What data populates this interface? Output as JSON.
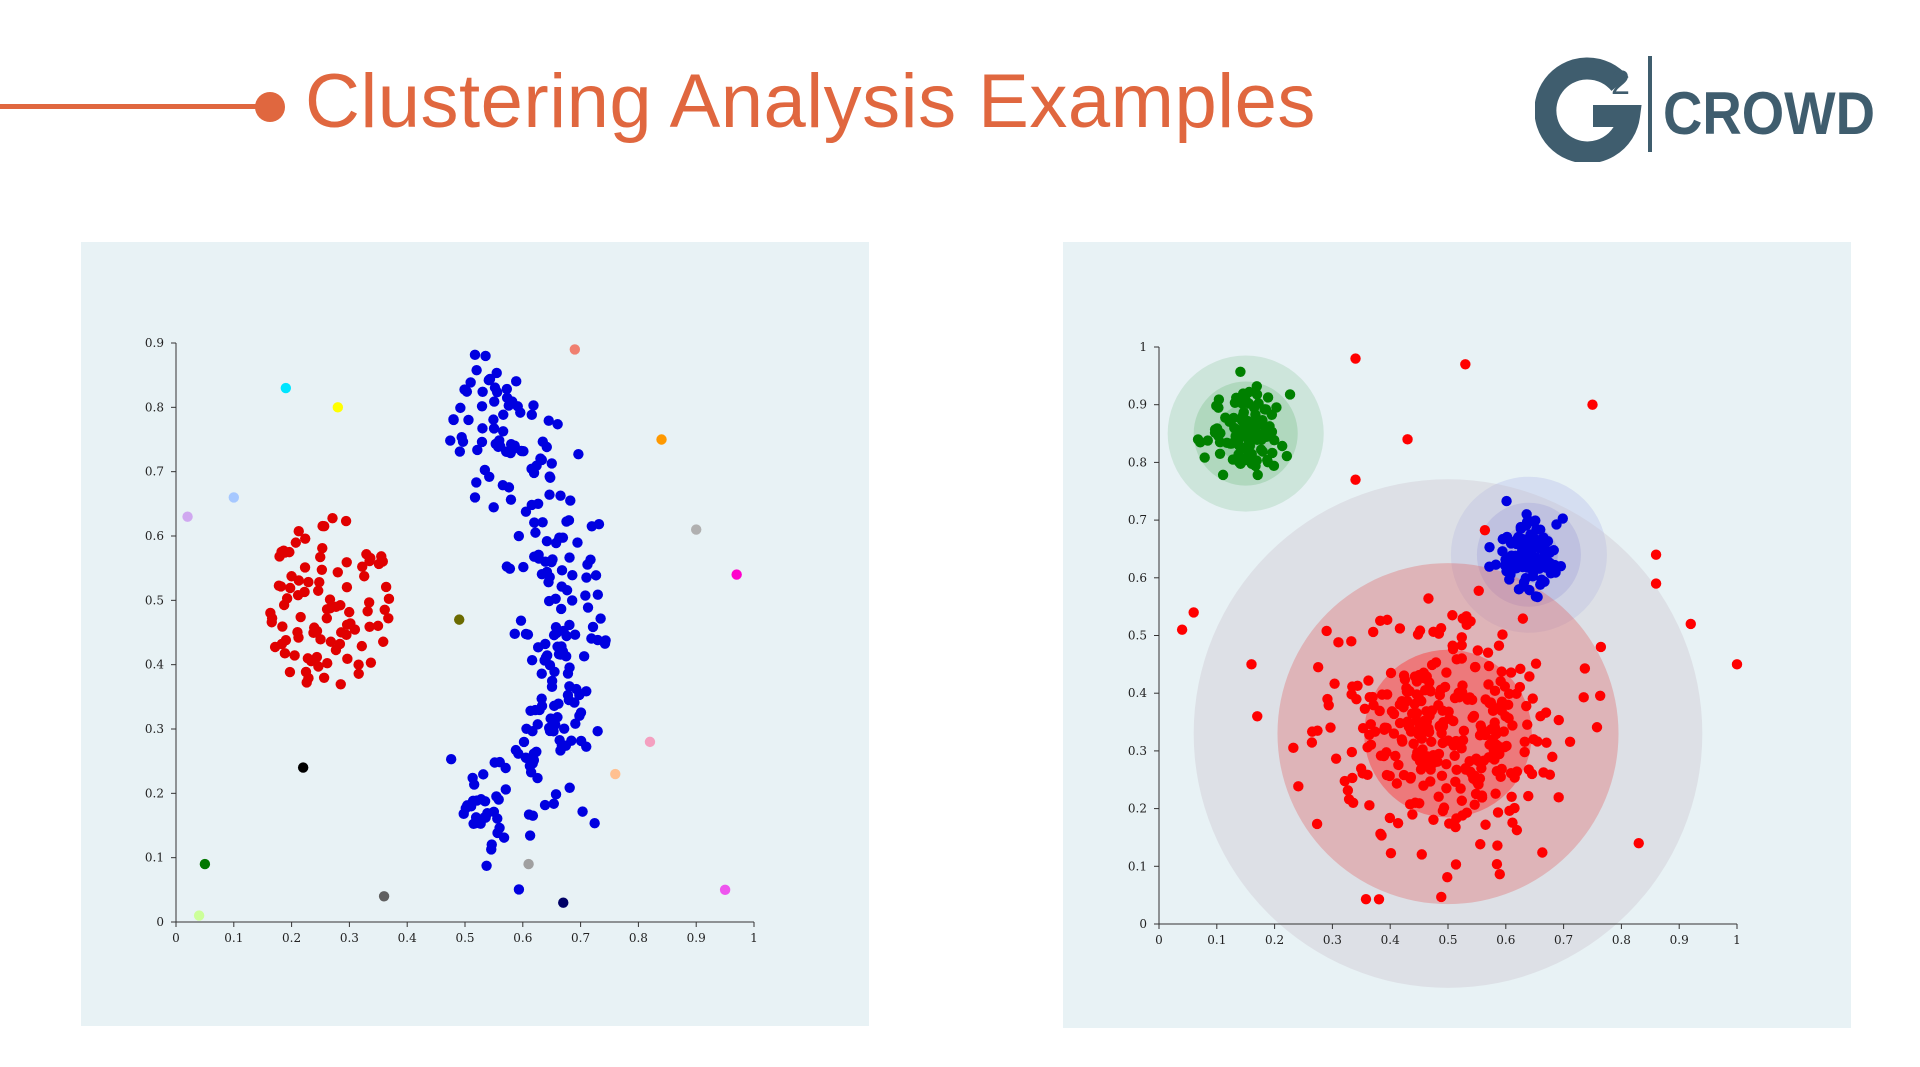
{
  "header": {
    "title": "Clustering Analysis Examples",
    "accent_color": "#e0673f",
    "logo": {
      "text": "CROWD",
      "mark": "G²",
      "color": "#3f5d6e"
    }
  },
  "chart_data": [
    {
      "type": "scatter",
      "title": "",
      "xlabel": "",
      "ylabel": "",
      "xlim": [
        0,
        1
      ],
      "ylim": [
        0,
        0.9
      ],
      "x_ticks": [
        "0",
        "0.1",
        "0.2",
        "0.3",
        "0.4",
        "0.5",
        "0.6",
        "0.7",
        "0.8",
        "0.9",
        "1"
      ],
      "y_ticks": [
        "0",
        "0.1",
        "0.2",
        "0.3",
        "0.4",
        "0.5",
        "0.6",
        "0.7",
        "0.8",
        "0.9"
      ],
      "grid": false,
      "clusters": [
        {
          "color": "#e00000",
          "shape": "disc",
          "center": [
            0.27,
            0.49
          ],
          "spread": [
            0.07,
            0.09
          ],
          "count": 95
        },
        {
          "color": "#0000e0",
          "shape": "arc",
          "center": [
            0.35,
            0.47
          ],
          "radius": 0.33,
          "angle_range": [
            -60,
            65
          ],
          "width": 0.045,
          "count": 250
        }
      ],
      "outliers": [
        {
          "x": 0.69,
          "y": 0.89,
          "color": "#f08070"
        },
        {
          "x": 0.19,
          "y": 0.83,
          "color": "#00e5ff"
        },
        {
          "x": 0.28,
          "y": 0.8,
          "color": "#ffff00"
        },
        {
          "x": 0.84,
          "y": 0.75,
          "color": "#ff9900"
        },
        {
          "x": 0.1,
          "y": 0.66,
          "color": "#a6c8ff"
        },
        {
          "x": 0.02,
          "y": 0.63,
          "color": "#d0a8f0"
        },
        {
          "x": 0.9,
          "y": 0.61,
          "color": "#b0b0b0"
        },
        {
          "x": 0.97,
          "y": 0.54,
          "color": "#ff00cc"
        },
        {
          "x": 0.49,
          "y": 0.47,
          "color": "#6b6b00"
        },
        {
          "x": 0.82,
          "y": 0.28,
          "color": "#f4a0c0"
        },
        {
          "x": 0.22,
          "y": 0.24,
          "color": "#000000"
        },
        {
          "x": 0.76,
          "y": 0.23,
          "color": "#ffc090"
        },
        {
          "x": 0.05,
          "y": 0.09,
          "color": "#007700"
        },
        {
          "x": 0.61,
          "y": 0.09,
          "color": "#a0a0a0"
        },
        {
          "x": 0.36,
          "y": 0.04,
          "color": "#606060"
        },
        {
          "x": 0.67,
          "y": 0.03,
          "color": "#000066"
        },
        {
          "x": 0.95,
          "y": 0.05,
          "color": "#ee55ee"
        },
        {
          "x": 0.04,
          "y": 0.01,
          "color": "#ccff99"
        }
      ]
    },
    {
      "type": "scatter",
      "title": "",
      "xlabel": "",
      "ylabel": "",
      "xlim": [
        0,
        1
      ],
      "ylim": [
        0,
        1
      ],
      "x_ticks": [
        "0",
        "0.1",
        "0.2",
        "0.3",
        "0.4",
        "0.5",
        "0.6",
        "0.7",
        "0.8",
        "0.9",
        "1"
      ],
      "y_ticks": [
        "0",
        "0.1",
        "0.2",
        "0.3",
        "0.4",
        "0.5",
        "0.6",
        "0.7",
        "0.8",
        "0.9",
        "1"
      ],
      "grid": false,
      "clusters": [
        {
          "color": "#008000",
          "center": [
            0.15,
            0.85
          ],
          "spread": 0.035,
          "count": 110,
          "halos": [
            {
              "r": 0.135,
              "color": "#2e9e3e",
              "opacity": 0.14
            },
            {
              "r": 0.09,
              "color": "#2e9e3e",
              "opacity": 0.18
            },
            {
              "r": 0.05,
              "color": "#2e9e3e",
              "opacity": 0.22
            }
          ]
        },
        {
          "color": "#0000e0",
          "center": [
            0.64,
            0.64
          ],
          "spread": 0.03,
          "count": 110,
          "halos": [
            {
              "r": 0.135,
              "color": "#3030d0",
              "opacity": 0.1
            },
            {
              "r": 0.09,
              "color": "#3030d0",
              "opacity": 0.16
            },
            {
              "r": 0.05,
              "color": "#3030d0",
              "opacity": 0.22
            }
          ]
        },
        {
          "color": "#ff0000",
          "center": [
            0.5,
            0.33
          ],
          "spread": 0.1,
          "count": 330,
          "halos": [
            {
              "r": 0.44,
              "color": "#c8c0cc",
              "opacity": 0.35
            },
            {
              "r": 0.295,
              "color": "#e06060",
              "opacity": 0.35
            },
            {
              "r": 0.145,
              "color": "#ff3030",
              "opacity": 0.45
            }
          ]
        }
      ],
      "outliers": [
        {
          "x": 0.34,
          "y": 0.98,
          "color": "#ff0000"
        },
        {
          "x": 0.53,
          "y": 0.97,
          "color": "#ff0000"
        },
        {
          "x": 0.75,
          "y": 0.9,
          "color": "#ff0000"
        },
        {
          "x": 0.43,
          "y": 0.84,
          "color": "#ff0000"
        },
        {
          "x": 0.34,
          "y": 0.77,
          "color": "#ff0000"
        },
        {
          "x": 0.86,
          "y": 0.64,
          "color": "#ff0000"
        },
        {
          "x": 0.86,
          "y": 0.59,
          "color": "#ff0000"
        },
        {
          "x": 0.06,
          "y": 0.54,
          "color": "#ff0000"
        },
        {
          "x": 0.04,
          "y": 0.51,
          "color": "#ff0000"
        },
        {
          "x": 0.92,
          "y": 0.52,
          "color": "#ff0000"
        },
        {
          "x": 0.16,
          "y": 0.45,
          "color": "#ff0000"
        },
        {
          "x": 1.0,
          "y": 0.45,
          "color": "#ff0000"
        },
        {
          "x": 0.17,
          "y": 0.36,
          "color": "#ff0000"
        },
        {
          "x": 0.83,
          "y": 0.14,
          "color": "#ff0000"
        }
      ]
    }
  ]
}
